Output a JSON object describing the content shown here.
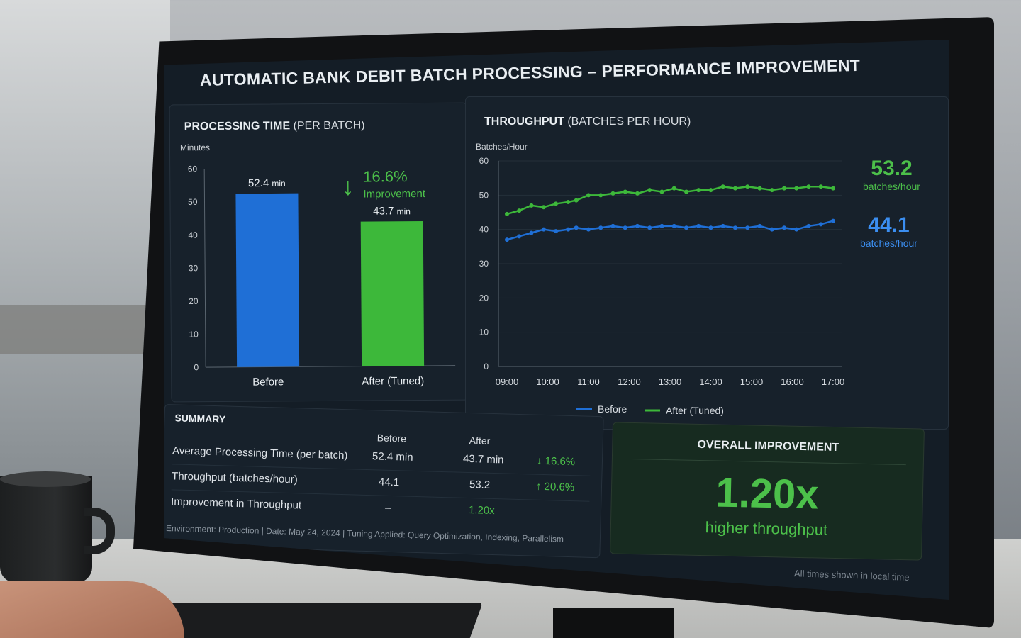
{
  "dashboard": {
    "title": "AUTOMATIC BANK DEBIT BATCH PROCESSING – PERFORMANCE IMPROVEMENT"
  },
  "processing_panel": {
    "title": "PROCESSING TIME",
    "title_sub": "(PER BATCH)",
    "improvement_pct": "16.6%",
    "improvement_label": "Improvement"
  },
  "throughput_panel": {
    "title": "THROUGHPUT",
    "title_sub": "(BATCHES PER HOUR)",
    "after_value": "53.2",
    "after_unit": "batches/hour",
    "before_value": "44.1",
    "before_unit": "batches/hour"
  },
  "summary": {
    "title": "SUMMARY",
    "col_before": "Before",
    "col_after": "After",
    "rows": [
      {
        "label": "Average Processing Time (per batch)",
        "before": "52.4 min",
        "after": "43.7 min",
        "delta": "↓ 16.6%"
      },
      {
        "label": "Throughput (batches/hour)",
        "before": "44.1",
        "after": "53.2",
        "delta": "↑ 20.6%"
      },
      {
        "label": "Improvement in Throughput",
        "before": "–",
        "after": "1.20x",
        "delta": ""
      }
    ]
  },
  "overall": {
    "title": "OVERALL IMPROVEMENT",
    "value": "1.20x",
    "caption": "higher throughput"
  },
  "footer": {
    "text": "Environment: Production   |   Date: May 24, 2024   |   Tuning Applied: Query Optimization, Indexing, Parallelism",
    "timezone_note": "All times shown in local time"
  },
  "colors": {
    "before": "#1f6fd6",
    "after": "#3db83a",
    "accent_green": "#4cc04a",
    "accent_blue": "#3b8ef0"
  },
  "chart_data": [
    {
      "type": "bar",
      "categories": [
        "Before",
        "After (Tuned)"
      ],
      "values": [
        52.4,
        43.7
      ],
      "value_labels": [
        "52.4",
        "43.7"
      ],
      "value_unit": "min",
      "ylabel": "Minutes",
      "ylim": [
        0,
        60
      ],
      "yticks": [
        0,
        10,
        20,
        30,
        40,
        50,
        60
      ]
    },
    {
      "type": "line",
      "x_ticks": [
        "09:00",
        "10:00",
        "11:00",
        "12:00",
        "13:00",
        "14:00",
        "15:00",
        "16:00",
        "17:00"
      ],
      "x_hours": [
        9.0,
        9.3,
        9.6,
        9.9,
        10.2,
        10.5,
        10.7,
        11.0,
        11.3,
        11.6,
        11.9,
        12.2,
        12.5,
        12.8,
        13.1,
        13.4,
        13.7,
        14.0,
        14.3,
        14.6,
        14.9,
        15.2,
        15.5,
        15.8,
        16.1,
        16.4,
        16.7,
        17.0
      ],
      "ylabel": "Batches/Hour",
      "ylim": [
        0,
        60
      ],
      "yticks": [
        0,
        10,
        20,
        30,
        40,
        50,
        60
      ],
      "series": [
        {
          "name": "After (Tuned)",
          "color": "#3db83a",
          "values": [
            44.5,
            45.5,
            47,
            46.5,
            47.5,
            48,
            48.5,
            50,
            50,
            50.5,
            51,
            50.5,
            51.5,
            51,
            52,
            51,
            51.5,
            51.5,
            52.5,
            52,
            52.5,
            52,
            51.5,
            52,
            52,
            52.5,
            52.5,
            52
          ]
        },
        {
          "name": "Before",
          "color": "#1f6fd6",
          "values": [
            37,
            38,
            39,
            40,
            39.5,
            40,
            40.5,
            40,
            40.5,
            41,
            40.5,
            41,
            40.5,
            41,
            41,
            40.5,
            41,
            40.5,
            41,
            40.5,
            40.5,
            41,
            40,
            40.5,
            40,
            41,
            41.5,
            42.5
          ]
        }
      ]
    }
  ]
}
